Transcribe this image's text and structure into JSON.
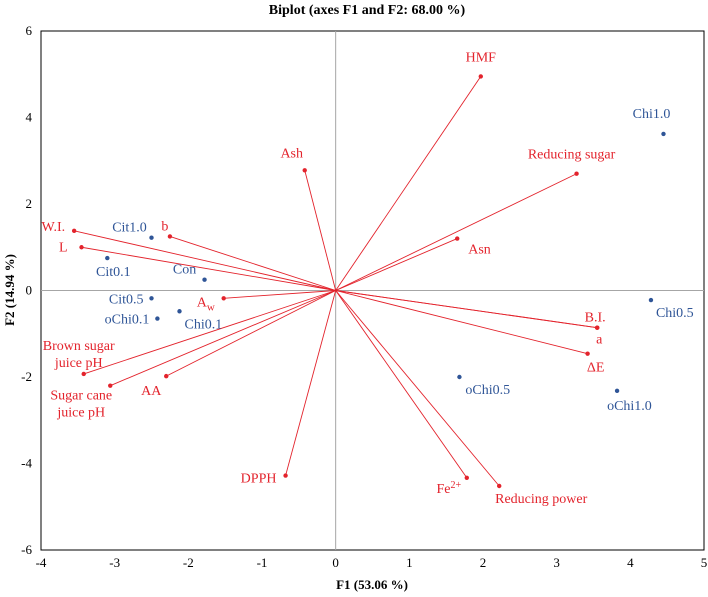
{
  "colors": {
    "variable": "#e3232c",
    "observation": "#2f5597",
    "axis": "#a6a6a6",
    "frame": "#000000"
  },
  "chart_data": {
    "type": "scatter",
    "title": "Biplot (axes F1 and F2: 68.00 %)",
    "xlabel": "F1 (53.06 %)",
    "ylabel": "F2 (14.94 %)",
    "xlim": [
      -4,
      5
    ],
    "ylim": [
      -6,
      6
    ],
    "xticks": [
      "-4",
      "-3",
      "-2",
      "-1",
      "0",
      "1",
      "2",
      "3",
      "4",
      "5"
    ],
    "yticks": [
      "-6",
      "-4",
      "-2",
      "0",
      "2",
      "4",
      "6"
    ],
    "grid": false,
    "variables": [
      {
        "label": "HMF",
        "x": 1.97,
        "y": 4.95
      },
      {
        "label": "Reducing sugar",
        "x": 3.27,
        "y": 2.7
      },
      {
        "label": "Ash",
        "x": -0.42,
        "y": 2.78
      },
      {
        "label": "Asn",
        "x": 1.65,
        "y": 1.2
      },
      {
        "label": "W.I.",
        "x": -3.55,
        "y": 1.38
      },
      {
        "label": "L",
        "x": -3.45,
        "y": 1.0
      },
      {
        "label": "b",
        "x": -2.25,
        "y": 1.25
      },
      {
        "label": "A",
        "sub": "w",
        "x": -1.52,
        "y": -0.18
      },
      {
        "label": "B.I.",
        "x": 3.55,
        "y": -0.86
      },
      {
        "label": "a",
        "x": 3.55,
        "y": -0.86
      },
      {
        "label": "ΔE",
        "x": 3.42,
        "y": -1.46
      },
      {
        "label": "Brown sugar",
        "label2": "juice pH",
        "x": -3.42,
        "y": -1.93
      },
      {
        "label": "Sugar cane",
        "label2": "juice pH",
        "x": -3.06,
        "y": -2.2
      },
      {
        "label": "AA",
        "x": -2.3,
        "y": -1.98
      },
      {
        "label": "DPPH",
        "x": -0.68,
        "y": -4.28
      },
      {
        "label": "Fe",
        "sup": "2+",
        "x": 1.78,
        "y": -4.33
      },
      {
        "label": "Reducing power",
        "x": 2.22,
        "y": -4.52
      }
    ],
    "observations": [
      {
        "label": "Chi1.0",
        "x": 4.45,
        "y": 3.62
      },
      {
        "label": "Cit1.0",
        "x": -2.5,
        "y": 1.22
      },
      {
        "label": "Cit0.1",
        "x": -3.1,
        "y": 0.75
      },
      {
        "label": "Con",
        "x": -1.78,
        "y": 0.25
      },
      {
        "label": "Cit0.5",
        "x": -2.5,
        "y": -0.18
      },
      {
        "label": "oChi0.1",
        "x": -2.42,
        "y": -0.65
      },
      {
        "label": "Chi0.1",
        "x": -2.12,
        "y": -0.48
      },
      {
        "label": "Chi0.5",
        "x": 4.28,
        "y": -0.22
      },
      {
        "label": "oChi0.5",
        "x": 1.68,
        "y": -2.0
      },
      {
        "label": "oChi1.0",
        "x": 3.82,
        "y": -2.32
      }
    ]
  }
}
